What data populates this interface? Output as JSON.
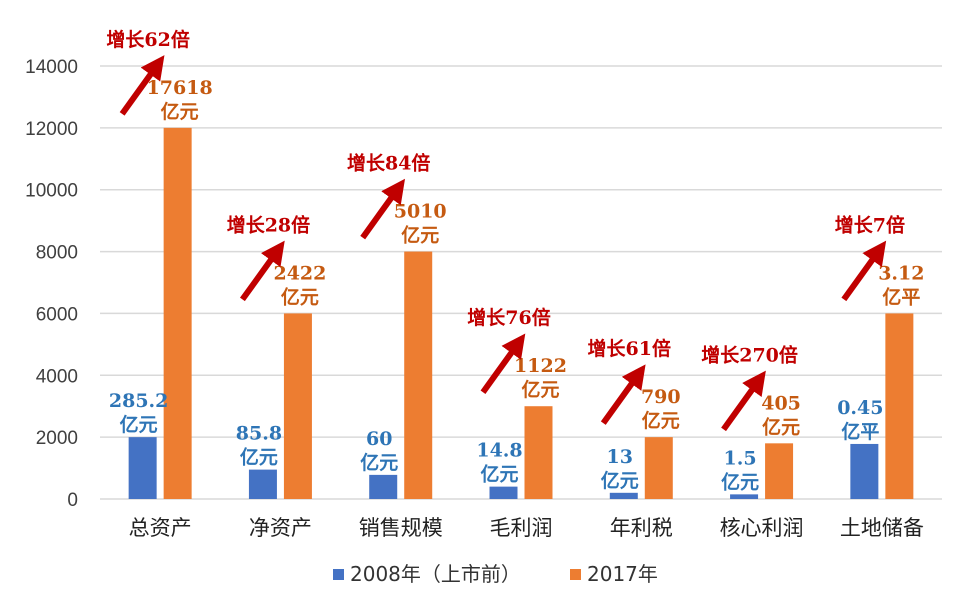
{
  "chart_data": {
    "type": "bar",
    "categories": [
      "总资产",
      "净资产",
      "销售规模",
      "毛利润",
      "年利税",
      "核心利润",
      "土地储备"
    ],
    "series": [
      {
        "name": "2008年（上市前）",
        "color": "#4472c4",
        "values": [
          2000,
          950,
          780,
          400,
          200,
          150,
          1780
        ]
      },
      {
        "name": "2017年",
        "color": "#ed7d31",
        "values": [
          12000,
          6000,
          8000,
          3000,
          2000,
          1800,
          6000
        ]
      }
    ],
    "ylim": [
      0,
      14000
    ],
    "yticks": [
      0,
      2000,
      4000,
      6000,
      8000,
      10000,
      12000,
      14000
    ],
    "grid": true,
    "legend_position": "bottom",
    "labels_2008": [
      [
        "285.2",
        "亿元"
      ],
      [
        "85.8",
        "亿元"
      ],
      [
        "60",
        "亿元"
      ],
      [
        "14.8",
        "亿元"
      ],
      [
        "13",
        "亿元"
      ],
      [
        "1.5",
        "亿元"
      ],
      [
        "0.45",
        "亿平"
      ]
    ],
    "labels_2017": [
      [
        "17618",
        "亿元"
      ],
      [
        "2422",
        "亿元"
      ],
      [
        "5010",
        "亿元"
      ],
      [
        "1122",
        "亿元"
      ],
      [
        "790",
        "亿元"
      ],
      [
        "405",
        "亿元"
      ],
      [
        "3.12",
        "亿平"
      ]
    ],
    "growth_labels": [
      "增长62倍",
      "增长28倍",
      "增长84倍",
      "增长76倍",
      "增长61倍",
      "增长270倍",
      "增长7倍"
    ],
    "colors": {
      "label_2008": "#2e75b6",
      "label_2017": "#c55a11",
      "growth": "#c00000",
      "arrow": "#c00000",
      "grid": "#d9d9d9"
    }
  }
}
